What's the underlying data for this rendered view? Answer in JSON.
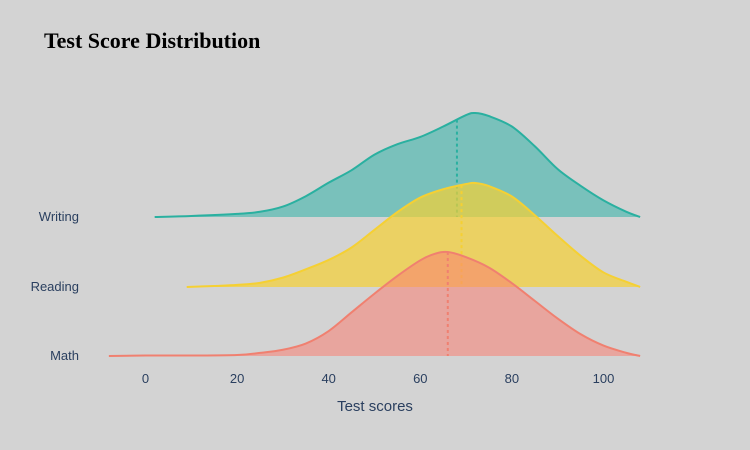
{
  "chart_data": {
    "type": "area",
    "title": "Test Score Distribution",
    "xlabel": "Test scores",
    "ylabel": "",
    "xlim": [
      -10,
      110
    ],
    "x_ticks": [
      0,
      20,
      40,
      60,
      80,
      100
    ],
    "grid": false,
    "legend": "none",
    "categories": [
      "Math",
      "Reading",
      "Writing"
    ],
    "series": [
      {
        "name": "Math",
        "color": "#f08070",
        "fill": "rgba(250,128,114,0.55)",
        "mean": 66,
        "x": [
          -8,
          0,
          10,
          20,
          25,
          30,
          35,
          40,
          45,
          50,
          55,
          60,
          63,
          66,
          70,
          75,
          80,
          85,
          90,
          95,
          100,
          105,
          108
        ],
        "density": [
          0.0,
          0.005,
          0.005,
          0.01,
          0.03,
          0.06,
          0.12,
          0.24,
          0.42,
          0.6,
          0.77,
          0.92,
          0.98,
          1.0,
          0.95,
          0.85,
          0.7,
          0.53,
          0.36,
          0.21,
          0.1,
          0.03,
          0.0
        ]
      },
      {
        "name": "Reading",
        "color": "#f5d033",
        "fill": "rgba(245,208,51,0.7)",
        "mean": 69,
        "x": [
          9,
          15,
          20,
          25,
          30,
          35,
          40,
          45,
          50,
          55,
          60,
          65,
          70,
          72,
          75,
          80,
          85,
          90,
          95,
          100,
          105,
          108
        ],
        "density": [
          0.0,
          0.01,
          0.02,
          0.04,
          0.09,
          0.17,
          0.26,
          0.38,
          0.55,
          0.72,
          0.86,
          0.94,
          0.99,
          1.0,
          0.97,
          0.87,
          0.69,
          0.49,
          0.3,
          0.14,
          0.05,
          0.0
        ]
      },
      {
        "name": "Writing",
        "color": "#2ab0a0",
        "fill": "rgba(72,183,174,0.65)",
        "mean": 68,
        "x": [
          2,
          10,
          20,
          25,
          30,
          35,
          40,
          45,
          50,
          55,
          60,
          65,
          70,
          72,
          75,
          80,
          85,
          90,
          95,
          100,
          105,
          108
        ],
        "density": [
          0.0,
          0.01,
          0.03,
          0.05,
          0.1,
          0.2,
          0.33,
          0.45,
          0.6,
          0.7,
          0.77,
          0.87,
          0.98,
          1.0,
          0.97,
          0.87,
          0.68,
          0.46,
          0.3,
          0.16,
          0.05,
          0.0
        ]
      }
    ]
  }
}
